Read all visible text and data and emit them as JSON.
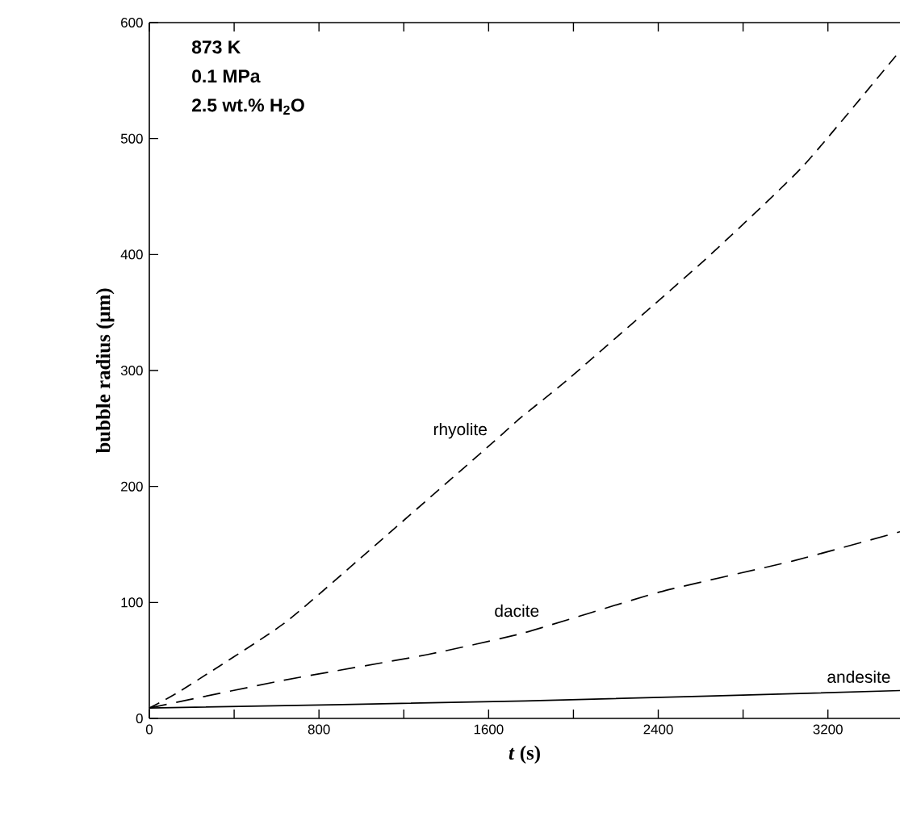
{
  "chart_data": {
    "type": "line",
    "xlabel": "*t* (s)",
    "ylabel": "bubble radius (μm)",
    "annotations": [
      "873 K",
      "0.1 MPa",
      "2.5 wt.% H$_{2}$O"
    ],
    "xlim": [
      0,
      3540
    ],
    "ylim": [
      0,
      600
    ],
    "xticks": [
      0,
      800,
      1600,
      2400,
      3200
    ],
    "yticks": [
      0,
      100,
      200,
      300,
      400,
      500,
      600
    ],
    "marker": "none",
    "series": [
      {
        "name": "rhyolite",
        "color": "#000000",
        "line_style": "dashed",
        "x": [
          0,
          149,
          636,
          1101,
          1608,
          1756,
          1985,
          2617,
          3082,
          3528
        ],
        "values": [
          9,
          24,
          82,
          155,
          236,
          260,
          294,
          395,
          476,
          573
        ]
      },
      {
        "name": "dacite",
        "color": "#000000",
        "line_style": "loosely dashed",
        "x": [
          0,
          636,
          1310,
          1771,
          2407,
          3040,
          3540
        ],
        "values": [
          9,
          33,
          55,
          74,
          109,
          136,
          161
        ]
      },
      {
        "name": "andesite",
        "color": "#000000",
        "line_style": "solid",
        "x": [
          0,
          1771,
          3540
        ],
        "values": [
          9,
          15,
          24
        ]
      }
    ]
  }
}
